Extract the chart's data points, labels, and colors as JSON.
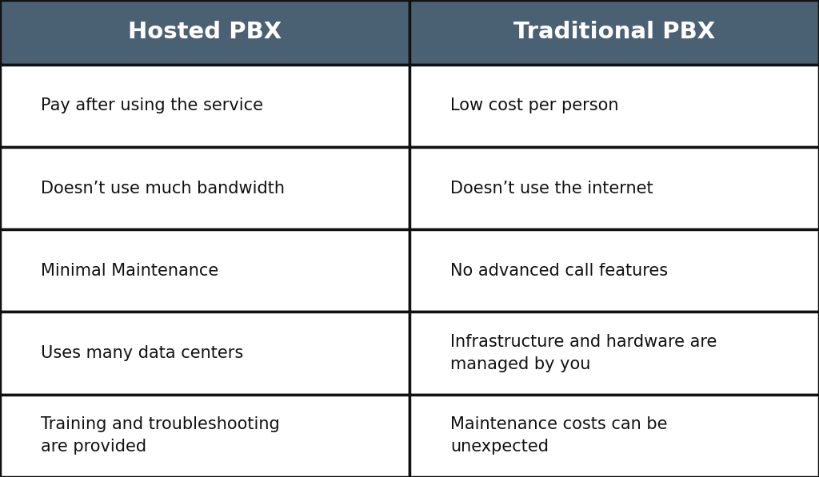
{
  "header_bg_color": "#4a6174",
  "header_text_color": "#ffffff",
  "cell_bg_color": "#ffffff",
  "cell_text_color": "#111111",
  "border_color": "#111111",
  "col1_header": "Hosted PBX",
  "col2_header": "Traditional PBX",
  "col1_items": [
    "Pay after using the service",
    "Doesn’t use much bandwidth",
    "Minimal Maintenance",
    "Uses many data centers",
    "Training and troubleshooting\nare provided"
  ],
  "col2_items": [
    "Low cost per person",
    "Doesn’t use the internet",
    "No advanced call features",
    "Infrastructure and hardware are\nmanaged by you",
    "Maintenance costs can be\nunexpected"
  ],
  "header_fontsize": 21,
  "cell_fontsize": 15,
  "fig_width": 10.24,
  "fig_height": 5.97
}
